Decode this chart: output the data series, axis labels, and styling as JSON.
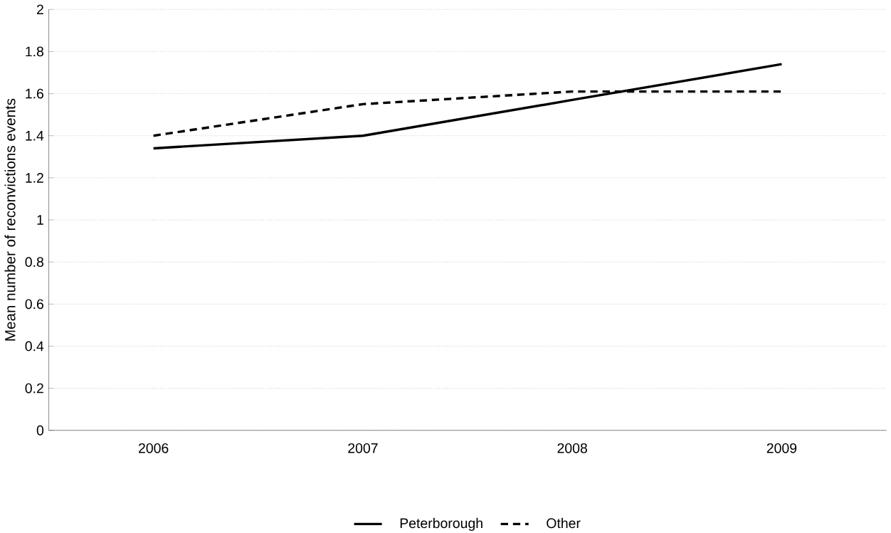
{
  "chart_data": {
    "type": "line",
    "ylabel": "Mean number of reconvictions events",
    "categories": [
      "2006",
      "2007",
      "2008",
      "2009"
    ],
    "series": [
      {
        "name": "Peterborough",
        "color": "#000000",
        "line_style": "solid",
        "values": [
          1.34,
          1.4,
          1.57,
          1.74
        ]
      },
      {
        "name": "Other",
        "color": "#000000",
        "line_style": "dashed",
        "values": [
          1.4,
          1.55,
          1.61,
          1.61
        ]
      }
    ],
    "ylim": [
      0,
      2
    ],
    "yticks": [
      0,
      0.2,
      0.4,
      0.6,
      0.8,
      1,
      1.2,
      1.4,
      1.6,
      1.8,
      2
    ],
    "grid": "y",
    "legend": "bottom",
    "marker": "none"
  }
}
